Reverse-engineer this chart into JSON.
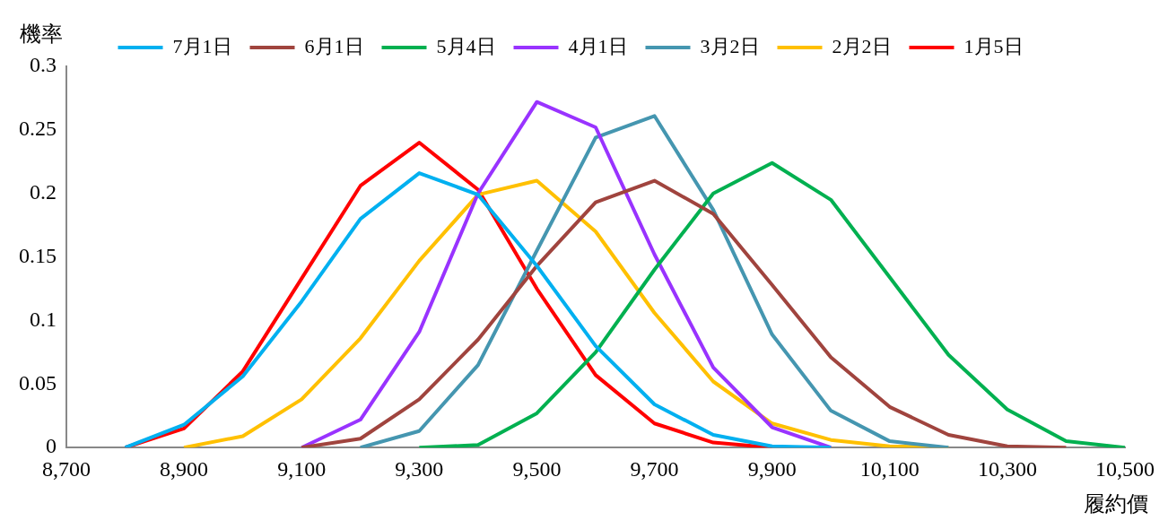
{
  "chart_data": {
    "type": "line",
    "ylabel": "機率",
    "xlabel": "履約價",
    "legend": "top",
    "grid": false,
    "marker": "none",
    "xlim": [
      8700,
      10500
    ],
    "xticks": [
      {
        "value": 8700,
        "label": "8,700"
      },
      {
        "value": 8900,
        "label": "8,900"
      },
      {
        "value": 9100,
        "label": "9,100"
      },
      {
        "value": 9300,
        "label": "9,300"
      },
      {
        "value": 9500,
        "label": "9,500"
      },
      {
        "value": 9700,
        "label": "9,700"
      },
      {
        "value": 9900,
        "label": "9,900"
      },
      {
        "value": 10100,
        "label": "10,100"
      },
      {
        "value": 10300,
        "label": "10,300"
      },
      {
        "value": 10500,
        "label": "10,500"
      }
    ],
    "ylim": [
      0,
      0.3
    ],
    "yticks": [
      0,
      0.05,
      0.1,
      0.15,
      0.2,
      0.25,
      0.3
    ],
    "series": [
      {
        "name": "7月1日",
        "color": "#00b0f0",
        "x": [
          8800,
          8900,
          9000,
          9100,
          9200,
          9300,
          9400,
          9500,
          9600,
          9700,
          9800,
          9900,
          10000
        ],
        "values": [
          0,
          0.018,
          0.056,
          0.115,
          0.18,
          0.216,
          0.199,
          0.143,
          0.08,
          0.034,
          0.01,
          0.001,
          0
        ]
      },
      {
        "name": "6月1日",
        "color": "#a0443e",
        "x": [
          9100,
          9200,
          9300,
          9400,
          9500,
          9600,
          9700,
          9800,
          9900,
          10000,
          10100,
          10200,
          10300,
          10400
        ],
        "values": [
          0,
          0.007,
          0.038,
          0.085,
          0.143,
          0.193,
          0.21,
          0.184,
          0.128,
          0.071,
          0.032,
          0.01,
          0.001,
          0
        ]
      },
      {
        "name": "5月4日",
        "color": "#00b050",
        "x": [
          9300,
          9400,
          9500,
          9600,
          9700,
          9800,
          9900,
          10000,
          10100,
          10200,
          10300,
          10400,
          10500
        ],
        "values": [
          0,
          0.002,
          0.027,
          0.075,
          0.14,
          0.2,
          0.224,
          0.195,
          0.134,
          0.073,
          0.03,
          0.005,
          0
        ]
      },
      {
        "name": "4月1日",
        "color": "#9933ff",
        "x": [
          9100,
          9200,
          9300,
          9400,
          9500,
          9600,
          9700,
          9800,
          9900,
          10000
        ],
        "values": [
          0,
          0.022,
          0.091,
          0.2,
          0.272,
          0.252,
          0.152,
          0.063,
          0.016,
          0
        ]
      },
      {
        "name": "3月2日",
        "color": "#4596b0",
        "x": [
          9200,
          9300,
          9400,
          9500,
          9600,
          9700,
          9800,
          9900,
          10000,
          10100,
          10200
        ],
        "values": [
          0,
          0.013,
          0.065,
          0.155,
          0.244,
          0.261,
          0.187,
          0.089,
          0.029,
          0.005,
          0
        ]
      },
      {
        "name": "2月2日",
        "color": "#ffc000",
        "x": [
          8900,
          9000,
          9100,
          9200,
          9300,
          9400,
          9500,
          9600,
          9700,
          9800,
          9900,
          10000,
          10100,
          10200
        ],
        "values": [
          0,
          0.009,
          0.038,
          0.086,
          0.147,
          0.199,
          0.21,
          0.17,
          0.106,
          0.052,
          0.019,
          0.006,
          0.001,
          0
        ]
      },
      {
        "name": "1月5日",
        "color": "#ff0000",
        "x": [
          8800,
          8900,
          9000,
          9100,
          9200,
          9300,
          9400,
          9500,
          9600,
          9700,
          9800,
          9900
        ],
        "values": [
          0,
          0.015,
          0.06,
          0.133,
          0.206,
          0.24,
          0.203,
          0.125,
          0.057,
          0.019,
          0.004,
          0
        ]
      }
    ]
  }
}
